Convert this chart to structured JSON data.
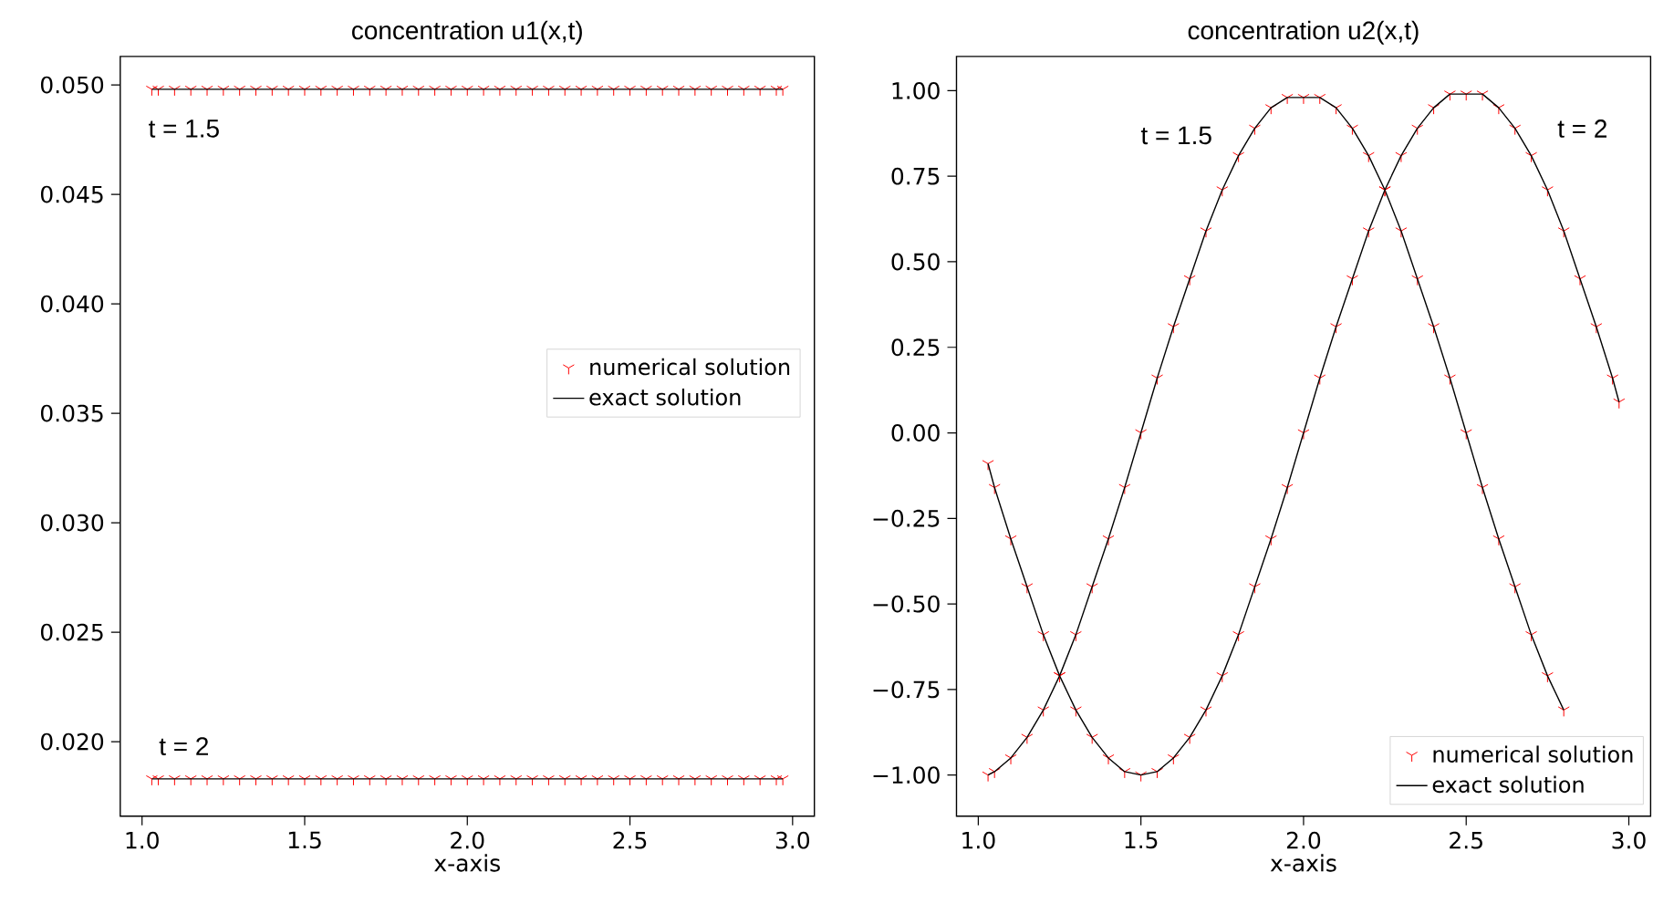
{
  "chart_data": [
    {
      "type": "line",
      "title": "concentration u1(x,t)",
      "xlabel": "x-axis",
      "xlim": [
        0.933,
        3.067
      ],
      "ylim": [
        0.0166,
        0.0513
      ],
      "xticks": [
        {
          "value": 1.0,
          "label": "1.0"
        },
        {
          "value": 1.5,
          "label": "1.5"
        },
        {
          "value": 2.0,
          "label": "2.0"
        },
        {
          "value": 2.5,
          "label": "2.5"
        },
        {
          "value": 3.0,
          "label": "3.0"
        }
      ],
      "yticks": [
        {
          "value": 0.02,
          "label": "0.020"
        },
        {
          "value": 0.025,
          "label": "0.025"
        },
        {
          "value": 0.03,
          "label": "0.030"
        },
        {
          "value": 0.035,
          "label": "0.035"
        },
        {
          "value": 0.04,
          "label": "0.040"
        },
        {
          "value": 0.045,
          "label": "0.045"
        },
        {
          "value": 0.05,
          "label": "0.050"
        }
      ],
      "legend": "center right",
      "annotations": [
        "t = 1.5",
        "t = 2"
      ],
      "series": [
        {
          "name": "numerical solution",
          "type": "scatter",
          "marker": "cross",
          "color": "#ff0000",
          "x": [
            1.03,
            1.05,
            1.1,
            1.15,
            1.2,
            1.25,
            1.3,
            1.35,
            1.4,
            1.45,
            1.5,
            1.55,
            1.6,
            1.65,
            1.7,
            1.75,
            1.8,
            1.85,
            1.9,
            1.95,
            2.0,
            2.05,
            2.1,
            2.15,
            2.2,
            2.25,
            2.3,
            2.35,
            2.4,
            2.45,
            2.5,
            2.55,
            2.6,
            2.65,
            2.7,
            2.75,
            2.8,
            2.85,
            2.9,
            2.95,
            2.97
          ],
          "values": [
            0.0498,
            0.0498,
            0.0498,
            0.0498,
            0.0498,
            0.0498,
            0.0498,
            0.0498,
            0.0498,
            0.0498,
            0.0498,
            0.0498,
            0.0498,
            0.0498,
            0.0498,
            0.0498,
            0.0498,
            0.0498,
            0.0498,
            0.0498,
            0.0498,
            0.0498,
            0.0498,
            0.0498,
            0.0498,
            0.0498,
            0.0498,
            0.0498,
            0.0498,
            0.0498,
            0.0498,
            0.0498,
            0.0498,
            0.0498,
            0.0498,
            0.0498,
            0.0498,
            0.0498,
            0.0498,
            0.0498,
            0.0498
          ]
        },
        {
          "name": "exact solution",
          "type": "line",
          "color": "#000000",
          "x": [
            1.03,
            2.97
          ],
          "values": [
            0.0498,
            0.0498
          ]
        },
        {
          "type": "scatter",
          "marker": "cross",
          "color": "#ff0000",
          "x": [
            1.03,
            1.05,
            1.1,
            1.15,
            1.2,
            1.25,
            1.3,
            1.35,
            1.4,
            1.45,
            1.5,
            1.55,
            1.6,
            1.65,
            1.7,
            1.75,
            1.8,
            1.85,
            1.9,
            1.95,
            2.0,
            2.05,
            2.1,
            2.15,
            2.2,
            2.25,
            2.3,
            2.35,
            2.4,
            2.45,
            2.5,
            2.55,
            2.6,
            2.65,
            2.7,
            2.75,
            2.8,
            2.85,
            2.9,
            2.95,
            2.97
          ],
          "values": [
            0.0183,
            0.0183,
            0.0183,
            0.0183,
            0.0183,
            0.0183,
            0.0183,
            0.0183,
            0.0183,
            0.0183,
            0.0183,
            0.0183,
            0.0183,
            0.0183,
            0.0183,
            0.0183,
            0.0183,
            0.0183,
            0.0183,
            0.0183,
            0.0183,
            0.0183,
            0.0183,
            0.0183,
            0.0183,
            0.0183,
            0.0183,
            0.0183,
            0.0183,
            0.0183,
            0.0183,
            0.0183,
            0.0183,
            0.0183,
            0.0183,
            0.0183,
            0.0183,
            0.0183,
            0.0183,
            0.0183,
            0.0183
          ]
        },
        {
          "type": "line",
          "color": "#000000",
          "x": [
            1.03,
            2.97
          ],
          "values": [
            0.0183,
            0.0183
          ]
        }
      ]
    },
    {
      "type": "line",
      "title": "concentration u2(x,t)",
      "xlabel": "x-axis",
      "xlim": [
        0.933,
        3.067
      ],
      "ylim": [
        -1.12,
        1.1
      ],
      "xticks": [
        {
          "value": 1.0,
          "label": "1.0"
        },
        {
          "value": 1.5,
          "label": "1.5"
        },
        {
          "value": 2.0,
          "label": "2.0"
        },
        {
          "value": 2.5,
          "label": "2.5"
        },
        {
          "value": 3.0,
          "label": "3.0"
        }
      ],
      "yticks": [
        {
          "value": -1.0,
          "label": "−1.00"
        },
        {
          "value": -0.75,
          "label": "−0.75"
        },
        {
          "value": -0.5,
          "label": "−0.50"
        },
        {
          "value": -0.25,
          "label": "−0.25"
        },
        {
          "value": 0.0,
          "label": "0.00"
        },
        {
          "value": 0.25,
          "label": "0.25"
        },
        {
          "value": 0.5,
          "label": "0.50"
        },
        {
          "value": 0.75,
          "label": "0.75"
        },
        {
          "value": 1.0,
          "label": "1.00"
        }
      ],
      "legend": "bottom right",
      "annotations": [
        "t = 1.5",
        "t = 2"
      ],
      "series": [
        {
          "name": "numerical solution",
          "type": "scatter",
          "marker": "cross",
          "color": "#ff0000",
          "x": [
            1.03,
            1.05,
            1.1,
            1.15,
            1.2,
            1.25,
            1.3,
            1.35,
            1.4,
            1.45,
            1.5,
            1.55,
            1.6,
            1.65,
            1.7,
            1.75,
            1.8,
            1.85,
            1.9,
            1.95,
            2.0,
            2.05,
            2.1,
            2.15,
            2.2,
            2.25,
            2.3,
            2.35,
            2.4,
            2.45,
            2.5,
            2.55,
            2.6,
            2.65,
            2.7,
            2.75,
            2.8
          ],
          "values": [
            -1.0,
            -0.99,
            -0.95,
            -0.89,
            -0.81,
            -0.71,
            -0.59,
            -0.45,
            -0.31,
            -0.16,
            0.0,
            0.16,
            0.31,
            0.45,
            0.59,
            0.71,
            0.81,
            0.89,
            0.95,
            0.98,
            0.98,
            0.98,
            0.95,
            0.89,
            0.81,
            0.71,
            0.59,
            0.45,
            0.31,
            0.16,
            0.0,
            -0.16,
            -0.31,
            -0.45,
            -0.59,
            -0.71,
            -0.81
          ]
        },
        {
          "name": "exact solution",
          "type": "line",
          "color": "#000000",
          "x": [
            1.03,
            1.05,
            1.1,
            1.15,
            1.2,
            1.25,
            1.3,
            1.35,
            1.4,
            1.45,
            1.5,
            1.55,
            1.6,
            1.65,
            1.7,
            1.75,
            1.8,
            1.85,
            1.9,
            1.95,
            2.0,
            2.05,
            2.1,
            2.15,
            2.2,
            2.25,
            2.3,
            2.35,
            2.4,
            2.45,
            2.5,
            2.55,
            2.6,
            2.65,
            2.7,
            2.75,
            2.8
          ],
          "values": [
            -1.0,
            -0.99,
            -0.95,
            -0.89,
            -0.81,
            -0.71,
            -0.59,
            -0.45,
            -0.31,
            -0.16,
            0.0,
            0.16,
            0.31,
            0.45,
            0.59,
            0.71,
            0.81,
            0.89,
            0.95,
            0.98,
            0.98,
            0.98,
            0.95,
            0.89,
            0.81,
            0.71,
            0.59,
            0.45,
            0.31,
            0.16,
            0.0,
            -0.16,
            -0.31,
            -0.45,
            -0.59,
            -0.71,
            -0.81
          ]
        },
        {
          "type": "scatter",
          "marker": "cross",
          "color": "#ff0000",
          "x": [
            1.03,
            1.05,
            1.1,
            1.15,
            1.2,
            1.25,
            1.3,
            1.35,
            1.4,
            1.45,
            1.5,
            1.55,
            1.6,
            1.65,
            1.7,
            1.75,
            1.8,
            1.85,
            1.9,
            1.95,
            2.0,
            2.05,
            2.1,
            2.15,
            2.2,
            2.25,
            2.3,
            2.35,
            2.4,
            2.45,
            2.5,
            2.55,
            2.6,
            2.65,
            2.7,
            2.75,
            2.8,
            2.85,
            2.9,
            2.95,
            2.97
          ],
          "values": [
            -0.09,
            -0.16,
            -0.31,
            -0.45,
            -0.59,
            -0.71,
            -0.81,
            -0.89,
            -0.95,
            -0.99,
            -1.0,
            -0.99,
            -0.95,
            -0.89,
            -0.81,
            -0.71,
            -0.59,
            -0.45,
            -0.31,
            -0.16,
            0.0,
            0.16,
            0.31,
            0.45,
            0.59,
            0.71,
            0.81,
            0.89,
            0.95,
            0.99,
            0.99,
            0.99,
            0.95,
            0.89,
            0.81,
            0.71,
            0.59,
            0.45,
            0.31,
            0.16,
            0.09
          ]
        },
        {
          "type": "line",
          "color": "#000000",
          "x": [
            1.03,
            1.05,
            1.1,
            1.15,
            1.2,
            1.25,
            1.3,
            1.35,
            1.4,
            1.45,
            1.5,
            1.55,
            1.6,
            1.65,
            1.7,
            1.75,
            1.8,
            1.85,
            1.9,
            1.95,
            2.0,
            2.05,
            2.1,
            2.15,
            2.2,
            2.25,
            2.3,
            2.35,
            2.4,
            2.45,
            2.5,
            2.55,
            2.6,
            2.65,
            2.7,
            2.75,
            2.8,
            2.85,
            2.9,
            2.95,
            2.97
          ],
          "values": [
            -0.09,
            -0.16,
            -0.31,
            -0.45,
            -0.59,
            -0.71,
            -0.81,
            -0.89,
            -0.95,
            -0.99,
            -1.0,
            -0.99,
            -0.95,
            -0.89,
            -0.81,
            -0.71,
            -0.59,
            -0.45,
            -0.31,
            -0.16,
            0.0,
            0.16,
            0.31,
            0.45,
            0.59,
            0.71,
            0.81,
            0.89,
            0.95,
            0.99,
            0.99,
            0.99,
            0.95,
            0.89,
            0.81,
            0.71,
            0.59,
            0.45,
            0.31,
            0.16,
            0.09
          ]
        }
      ]
    }
  ]
}
